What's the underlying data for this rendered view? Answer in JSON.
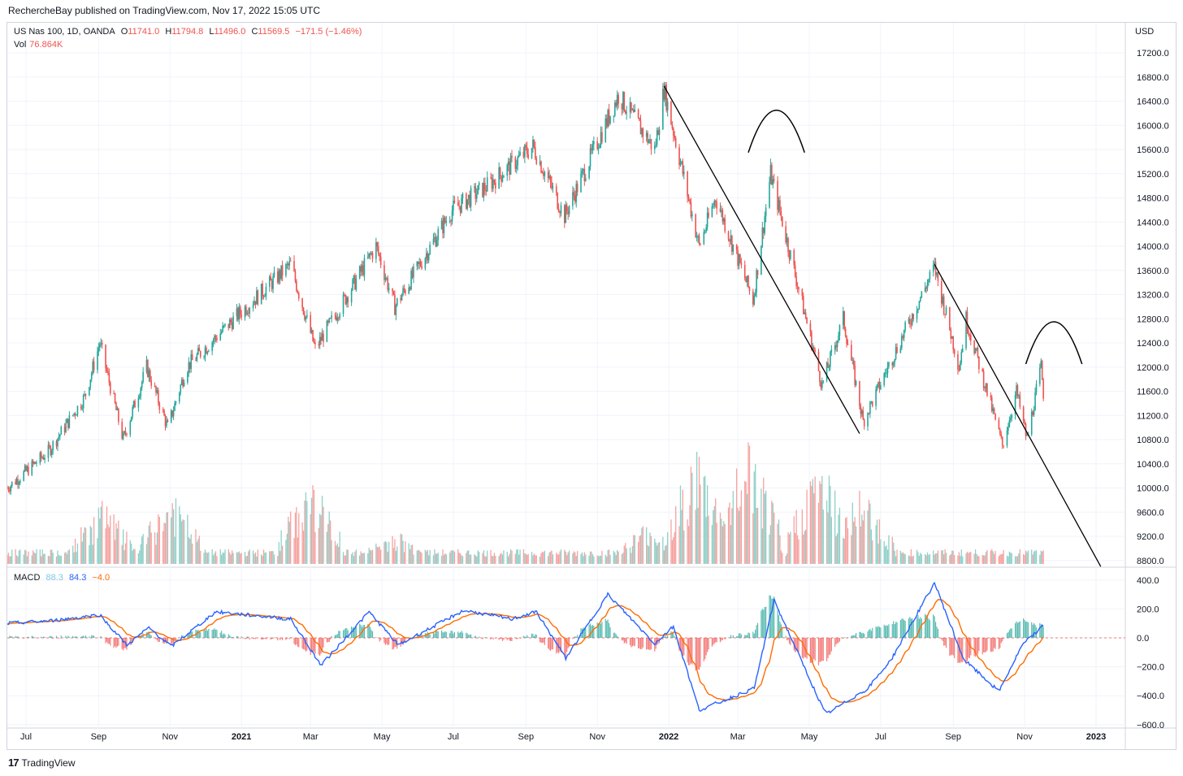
{
  "header": {
    "published": "RechercheBay published on TradingView.com, Nov 17, 2022 15:05 UTC"
  },
  "legend": {
    "symbol": "US Nas 100, 1D, OANDA",
    "o_label": "O",
    "o": "11741.0",
    "h_label": "H",
    "h": "11794.8",
    "l_label": "L",
    "l": "11496.0",
    "c_label": "C",
    "c": "11569.5",
    "change": "−171.5 (−1.46%)",
    "vol_label": "Vol",
    "vol": "76.864K"
  },
  "macd_legend": {
    "label": "MACD",
    "hist": "88.3",
    "macd": "84.3",
    "signal": "−4.0"
  },
  "footer": {
    "brand": "TradingView",
    "logo": "17"
  },
  "colors": {
    "up": "#26a69a",
    "down": "#ef5350",
    "macd": "#2962ff",
    "signal": "#ff6d00",
    "grid": "#f0f3fa",
    "drawing": "#000000"
  },
  "chart_data": {
    "type": "candlestick",
    "currency": "USD",
    "price_axis_ticks": [
      "17200.0",
      "16800.0",
      "16400.0",
      "16000.0",
      "15600.0",
      "15200.0",
      "14800.0",
      "14400.0",
      "14000.0",
      "13600.0",
      "13200.0",
      "12800.0",
      "12400.0",
      "12000.0",
      "11600.0",
      "11200.0",
      "10800.0",
      "10400.0",
      "10000.0",
      "9600.0",
      "9200.0",
      "8800.0"
    ],
    "macd_axis_ticks": [
      "400.0",
      "200.0",
      "0.0",
      "−200.0",
      "−400.0",
      "−600.0"
    ],
    "time_axis_ticks": [
      "Jul",
      "Sep",
      "Nov",
      "2021",
      "Mar",
      "May",
      "Jul",
      "Sep",
      "Nov",
      "2022",
      "Mar",
      "May",
      "Jul",
      "Sep",
      "Nov",
      "2023"
    ],
    "price_range": [
      8700,
      17500
    ],
    "macd_range": [
      -600,
      400
    ],
    "price_path": [
      {
        "date": "2020-06-15",
        "price": 10000
      },
      {
        "date": "2020-07-20",
        "price": 10600
      },
      {
        "date": "2020-08-20",
        "price": 11500
      },
      {
        "date": "2020-09-02",
        "price": 12400
      },
      {
        "date": "2020-09-22",
        "price": 10800
      },
      {
        "date": "2020-10-12",
        "price": 12000
      },
      {
        "date": "2020-10-30",
        "price": 11000
      },
      {
        "date": "2020-11-15",
        "price": 12000
      },
      {
        "date": "2020-12-31",
        "price": 12900
      },
      {
        "date": "2021-02-12",
        "price": 13700
      },
      {
        "date": "2021-03-05",
        "price": 12300
      },
      {
        "date": "2021-04-26",
        "price": 14000
      },
      {
        "date": "2021-05-12",
        "price": 13000
      },
      {
        "date": "2021-06-30",
        "price": 14600
      },
      {
        "date": "2021-07-30",
        "price": 15000
      },
      {
        "date": "2021-09-07",
        "price": 15650
      },
      {
        "date": "2021-10-04",
        "price": 14500
      },
      {
        "date": "2021-11-19",
        "price": 16500
      },
      {
        "date": "2021-12-20",
        "price": 15600
      },
      {
        "date": "2021-12-28",
        "price": 16600
      },
      {
        "date": "2022-01-27",
        "price": 14000
      },
      {
        "date": "2022-02-10",
        "price": 14800
      },
      {
        "date": "2022-03-14",
        "price": 13100
      },
      {
        "date": "2022-03-29",
        "price": 15200
      },
      {
        "date": "2022-05-12",
        "price": 11700
      },
      {
        "date": "2022-05-30",
        "price": 12800
      },
      {
        "date": "2022-06-16",
        "price": 11100
      },
      {
        "date": "2022-07-05",
        "price": 11900
      },
      {
        "date": "2022-08-16",
        "price": 13650
      },
      {
        "date": "2022-09-06",
        "price": 12000
      },
      {
        "date": "2022-09-12",
        "price": 12800
      },
      {
        "date": "2022-10-13",
        "price": 10700
      },
      {
        "date": "2022-10-25",
        "price": 11600
      },
      {
        "date": "2022-11-03",
        "price": 10800
      },
      {
        "date": "2022-11-15",
        "price": 12000
      },
      {
        "date": "2022-11-17",
        "price": 11570
      }
    ],
    "volume_base": 40,
    "volume_spikes": [
      {
        "date": "2020-09-04",
        "volume": 220
      },
      {
        "date": "2020-11-02",
        "volume": 250
      },
      {
        "date": "2021-03-01",
        "volume": 300
      },
      {
        "date": "2021-05-12",
        "volume": 120
      },
      {
        "date": "2021-12-15",
        "volume": 150
      },
      {
        "date": "2022-01-25",
        "volume": 400
      },
      {
        "date": "2022-03-10",
        "volume": 420
      },
      {
        "date": "2022-05-10",
        "volume": 380
      },
      {
        "date": "2022-06-15",
        "volume": 260
      }
    ],
    "macd_path": [
      {
        "date": "2020-06-15",
        "value": 100
      },
      {
        "date": "2020-07-25",
        "value": 120
      },
      {
        "date": "2020-09-02",
        "value": 160
      },
      {
        "date": "2020-09-25",
        "value": -50
      },
      {
        "date": "2020-10-14",
        "value": 70
      },
      {
        "date": "2020-11-02",
        "value": -60
      },
      {
        "date": "2020-12-10",
        "value": 180
      },
      {
        "date": "2021-02-12",
        "value": 130
      },
      {
        "date": "2021-03-10",
        "value": -190
      },
      {
        "date": "2021-04-20",
        "value": 180
      },
      {
        "date": "2021-05-15",
        "value": -50
      },
      {
        "date": "2021-07-10",
        "value": 190
      },
      {
        "date": "2021-08-20",
        "value": 130
      },
      {
        "date": "2021-09-10",
        "value": 180
      },
      {
        "date": "2021-10-05",
        "value": -140
      },
      {
        "date": "2021-11-10",
        "value": 300
      },
      {
        "date": "2021-12-20",
        "value": -40
      },
      {
        "date": "2022-01-05",
        "value": 80
      },
      {
        "date": "2022-01-27",
        "value": -500
      },
      {
        "date": "2022-03-15",
        "value": -350
      },
      {
        "date": "2022-04-01",
        "value": 260
      },
      {
        "date": "2022-05-15",
        "value": -530
      },
      {
        "date": "2022-06-20",
        "value": -350
      },
      {
        "date": "2022-07-10",
        "value": -150
      },
      {
        "date": "2022-08-16",
        "value": 380
      },
      {
        "date": "2022-09-10",
        "value": -150
      },
      {
        "date": "2022-10-10",
        "value": -370
      },
      {
        "date": "2022-10-30",
        "value": -50
      },
      {
        "date": "2022-11-17",
        "value": 84
      }
    ],
    "drawings": [
      {
        "type": "trendline",
        "from": {
          "date": "2021-12-28",
          "price": 16650
        },
        "to": {
          "date": "2022-06-13",
          "price": 10900
        }
      },
      {
        "type": "trendline",
        "from": {
          "date": "2022-08-16",
          "price": 13700
        },
        "to": {
          "date": "2023-01-05",
          "price": 8700
        }
      },
      {
        "type": "arc",
        "center": {
          "date": "2022-04-03",
          "price": 15550
        },
        "width_days": 48,
        "height_price": 700
      },
      {
        "type": "arc",
        "center": {
          "date": "2022-11-26",
          "price": 12050
        },
        "width_days": 48,
        "height_price": 700
      }
    ]
  }
}
